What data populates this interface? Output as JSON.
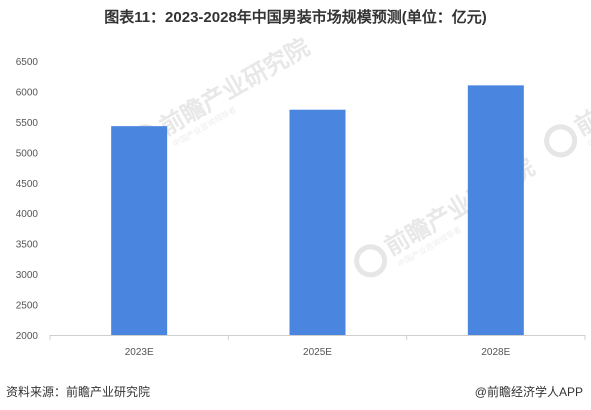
{
  "header": {
    "title": "图表11：2023-2028年中国男装市场规模预测(单位：亿元)"
  },
  "watermark": {
    "brand": "前瞻产业研究院",
    "subtitle": "中国产业咨询领导者"
  },
  "footer": {
    "source": "资料来源：前瞻产业研究院",
    "brand": "@前瞻经济学人APP"
  },
  "colors": {
    "bar": "#4a86e0",
    "axis": "#cfcfcf",
    "text": "#555555"
  },
  "chart_data": {
    "type": "bar",
    "title": "图表11：2023-2028年中国男装市场规模预测(单位：亿元)",
    "categories": [
      "2023E",
      "2025E",
      "2028E"
    ],
    "values": [
      5430,
      5700,
      6100
    ],
    "ylim": [
      2000,
      6500
    ],
    "yticks": [
      2000,
      2500,
      3000,
      3500,
      4000,
      4500,
      5000,
      5500,
      6000,
      6500
    ],
    "xlabel": "",
    "ylabel": "",
    "grid": false,
    "legend": "none"
  }
}
